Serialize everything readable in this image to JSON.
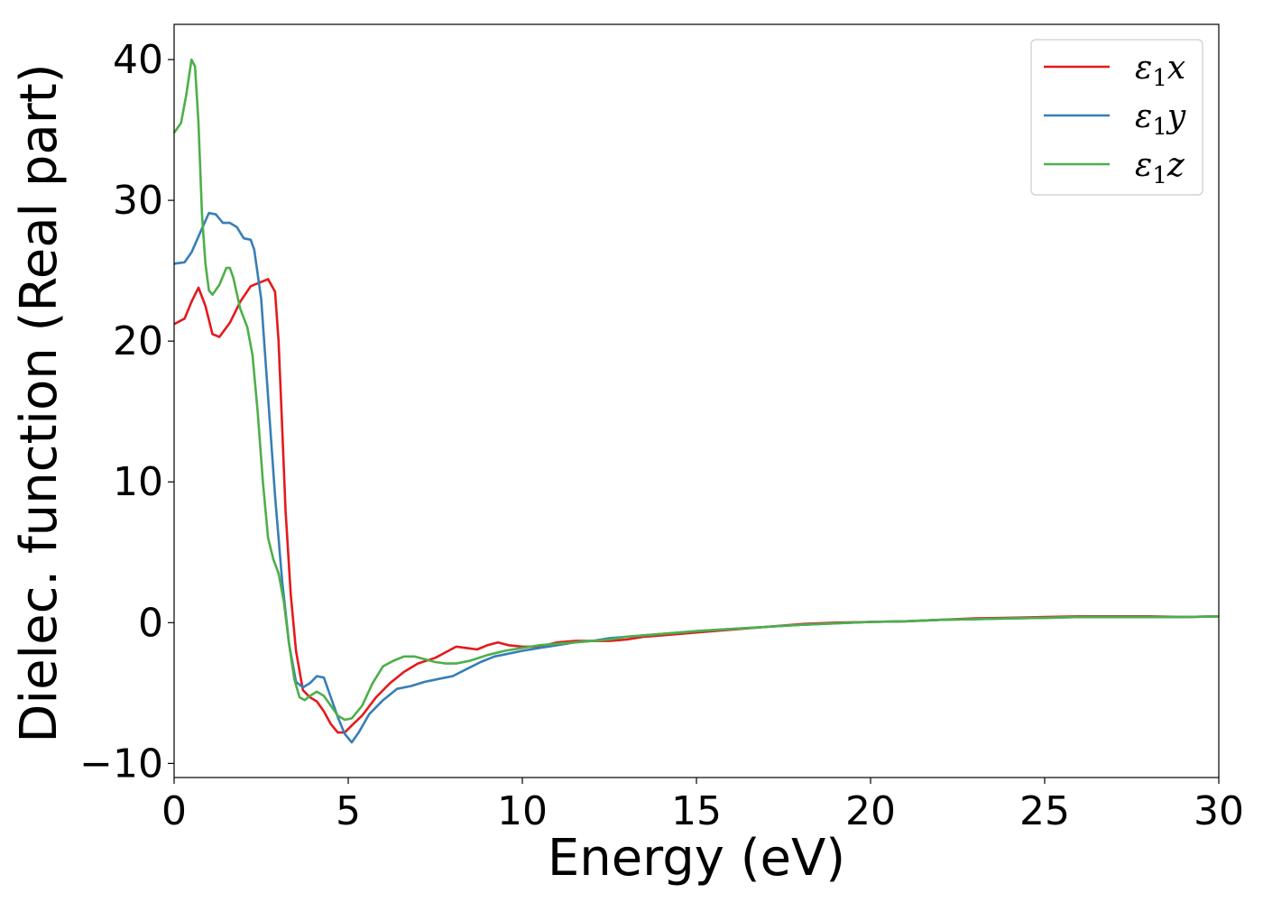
{
  "chart_data": {
    "type": "line",
    "xlabel": "Energy (eV)",
    "ylabel": "Dielec. function (Real part)",
    "xlim": [
      0,
      30
    ],
    "ylim": [
      -11,
      42.5
    ],
    "xticks": [
      0,
      5,
      10,
      15,
      20,
      25,
      30
    ],
    "yticks": [
      -10,
      0,
      10,
      20,
      30,
      40
    ],
    "xtick_labels": [
      "0",
      "5",
      "10",
      "15",
      "20",
      "25",
      "30"
    ],
    "ytick_labels": [
      "−10",
      "0",
      "10",
      "20",
      "30",
      "40"
    ],
    "grid": false,
    "legend_position": "top-right",
    "series": [
      {
        "name": "ε1x",
        "label_main": "ε",
        "label_sub": "1",
        "label_var": "x",
        "color": "#e41a1c",
        "points": [
          [
            0,
            21.2
          ],
          [
            0.3,
            21.6
          ],
          [
            0.5,
            22.8
          ],
          [
            0.7,
            23.8
          ],
          [
            0.9,
            22.5
          ],
          [
            1.1,
            20.5
          ],
          [
            1.3,
            20.3
          ],
          [
            1.6,
            21.3
          ],
          [
            1.9,
            22.8
          ],
          [
            2.2,
            23.9
          ],
          [
            2.5,
            24.2
          ],
          [
            2.7,
            24.4
          ],
          [
            2.9,
            23.5
          ],
          [
            3.0,
            20
          ],
          [
            3.1,
            14
          ],
          [
            3.2,
            8
          ],
          [
            3.35,
            2
          ],
          [
            3.5,
            -2
          ],
          [
            3.7,
            -4.8
          ],
          [
            3.9,
            -5.3
          ],
          [
            4.1,
            -5.6
          ],
          [
            4.3,
            -6.3
          ],
          [
            4.5,
            -7.2
          ],
          [
            4.7,
            -7.8
          ],
          [
            4.9,
            -7.8
          ],
          [
            5.1,
            -7.3
          ],
          [
            5.4,
            -6.6
          ],
          [
            5.8,
            -5.3
          ],
          [
            6.2,
            -4.3
          ],
          [
            6.6,
            -3.5
          ],
          [
            7.0,
            -2.9
          ],
          [
            7.5,
            -2.5
          ],
          [
            7.8,
            -2.1
          ],
          [
            8.1,
            -1.7
          ],
          [
            8.4,
            -1.8
          ],
          [
            8.7,
            -1.9
          ],
          [
            9.0,
            -1.6
          ],
          [
            9.3,
            -1.4
          ],
          [
            9.6,
            -1.6
          ],
          [
            10.0,
            -1.7
          ],
          [
            10.5,
            -1.7
          ],
          [
            11.0,
            -1.4
          ],
          [
            11.5,
            -1.3
          ],
          [
            12.0,
            -1.3
          ],
          [
            12.5,
            -1.3
          ],
          [
            13.0,
            -1.2
          ],
          [
            13.5,
            -1.0
          ],
          [
            14,
            -0.9
          ],
          [
            15,
            -0.7
          ],
          [
            16,
            -0.5
          ],
          [
            17,
            -0.3
          ],
          [
            18,
            -0.1
          ],
          [
            19,
            0
          ],
          [
            20,
            0.05
          ],
          [
            21,
            0.1
          ],
          [
            22,
            0.2
          ],
          [
            23,
            0.3
          ],
          [
            24,
            0.35
          ],
          [
            25,
            0.4
          ],
          [
            26,
            0.45
          ],
          [
            27,
            0.45
          ],
          [
            28,
            0.45
          ],
          [
            29,
            0.4
          ],
          [
            30,
            0.45
          ]
        ]
      },
      {
        "name": "ε1y",
        "label_main": "ε",
        "label_sub": "1",
        "label_var": "y",
        "color": "#377eb8",
        "points": [
          [
            0,
            25.5
          ],
          [
            0.3,
            25.6
          ],
          [
            0.5,
            26.3
          ],
          [
            0.8,
            28.0
          ],
          [
            1.0,
            29.1
          ],
          [
            1.2,
            29.0
          ],
          [
            1.4,
            28.4
          ],
          [
            1.6,
            28.4
          ],
          [
            1.8,
            28.1
          ],
          [
            2.0,
            27.3
          ],
          [
            2.2,
            27.2
          ],
          [
            2.3,
            26.5
          ],
          [
            2.5,
            23
          ],
          [
            2.7,
            16
          ],
          [
            2.9,
            9
          ],
          [
            3.1,
            3
          ],
          [
            3.3,
            -1.5
          ],
          [
            3.5,
            -4.2
          ],
          [
            3.7,
            -4.6
          ],
          [
            3.9,
            -4.3
          ],
          [
            4.1,
            -3.8
          ],
          [
            4.3,
            -3.9
          ],
          [
            4.5,
            -5.3
          ],
          [
            4.7,
            -6.7
          ],
          [
            4.9,
            -7.9
          ],
          [
            5.1,
            -8.5
          ],
          [
            5.3,
            -7.8
          ],
          [
            5.6,
            -6.5
          ],
          [
            6.0,
            -5.5
          ],
          [
            6.4,
            -4.7
          ],
          [
            6.8,
            -4.5
          ],
          [
            7.2,
            -4.2
          ],
          [
            7.6,
            -4.0
          ],
          [
            8.0,
            -3.8
          ],
          [
            8.4,
            -3.3
          ],
          [
            8.8,
            -2.8
          ],
          [
            9.2,
            -2.4
          ],
          [
            9.6,
            -2.2
          ],
          [
            10.0,
            -2.0
          ],
          [
            10.5,
            -1.8
          ],
          [
            11.0,
            -1.6
          ],
          [
            11.5,
            -1.4
          ],
          [
            12.0,
            -1.3
          ],
          [
            12.5,
            -1.1
          ],
          [
            13,
            -1.0
          ],
          [
            14,
            -0.8
          ],
          [
            15,
            -0.6
          ],
          [
            16,
            -0.45
          ],
          [
            17,
            -0.3
          ],
          [
            18,
            -0.15
          ],
          [
            19,
            -0.05
          ],
          [
            20,
            0.05
          ],
          [
            21,
            0.1
          ],
          [
            22,
            0.2
          ],
          [
            23,
            0.25
          ],
          [
            24,
            0.3
          ],
          [
            25,
            0.35
          ],
          [
            26,
            0.4
          ],
          [
            27,
            0.4
          ],
          [
            28,
            0.4
          ],
          [
            29,
            0.4
          ],
          [
            30,
            0.45
          ]
        ]
      },
      {
        "name": "ε1z",
        "label_main": "ε",
        "label_sub": "1",
        "label_var": "z",
        "color": "#4daf4a",
        "points": [
          [
            0,
            34.8
          ],
          [
            0.2,
            35.5
          ],
          [
            0.35,
            37.5
          ],
          [
            0.5,
            40.0
          ],
          [
            0.6,
            39.5
          ],
          [
            0.7,
            35.5
          ],
          [
            0.8,
            29
          ],
          [
            0.9,
            25.5
          ],
          [
            1.0,
            23.6
          ],
          [
            1.1,
            23.3
          ],
          [
            1.3,
            24.0
          ],
          [
            1.5,
            25.2
          ],
          [
            1.6,
            25.2
          ],
          [
            1.7,
            24.5
          ],
          [
            1.9,
            22.3
          ],
          [
            2.1,
            21.0
          ],
          [
            2.25,
            19
          ],
          [
            2.4,
            15
          ],
          [
            2.55,
            10
          ],
          [
            2.7,
            6
          ],
          [
            2.85,
            4.5
          ],
          [
            3.0,
            3.5
          ],
          [
            3.15,
            1.5
          ],
          [
            3.3,
            -1.5
          ],
          [
            3.45,
            -4.0
          ],
          [
            3.6,
            -5.3
          ],
          [
            3.75,
            -5.5
          ],
          [
            3.9,
            -5.2
          ],
          [
            4.1,
            -4.9
          ],
          [
            4.3,
            -5.2
          ],
          [
            4.5,
            -5.9
          ],
          [
            4.7,
            -6.6
          ],
          [
            4.9,
            -6.9
          ],
          [
            5.1,
            -6.8
          ],
          [
            5.4,
            -5.9
          ],
          [
            5.7,
            -4.3
          ],
          [
            6.0,
            -3.1
          ],
          [
            6.3,
            -2.7
          ],
          [
            6.6,
            -2.4
          ],
          [
            6.9,
            -2.4
          ],
          [
            7.2,
            -2.6
          ],
          [
            7.5,
            -2.8
          ],
          [
            7.8,
            -2.9
          ],
          [
            8.1,
            -2.9
          ],
          [
            8.5,
            -2.7
          ],
          [
            9.0,
            -2.3
          ],
          [
            9.5,
            -2.0
          ],
          [
            10.0,
            -1.8
          ],
          [
            10.5,
            -1.6
          ],
          [
            11.0,
            -1.5
          ],
          [
            11.5,
            -1.4
          ],
          [
            12.0,
            -1.3
          ],
          [
            12.5,
            -1.2
          ],
          [
            13,
            -1.0
          ],
          [
            14,
            -0.8
          ],
          [
            15,
            -0.6
          ],
          [
            16,
            -0.45
          ],
          [
            17,
            -0.3
          ],
          [
            18,
            -0.15
          ],
          [
            19,
            -0.05
          ],
          [
            20,
            0.05
          ],
          [
            21,
            0.1
          ],
          [
            22,
            0.2
          ],
          [
            23,
            0.25
          ],
          [
            24,
            0.3
          ],
          [
            25,
            0.35
          ],
          [
            26,
            0.4
          ],
          [
            27,
            0.4
          ],
          [
            28,
            0.4
          ],
          [
            29,
            0.4
          ],
          [
            30,
            0.45
          ]
        ]
      }
    ]
  }
}
